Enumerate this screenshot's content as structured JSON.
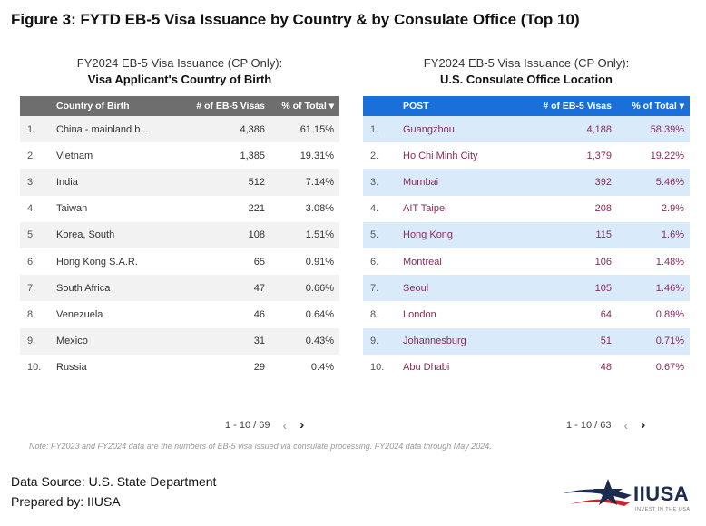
{
  "figure_title": "Figure 3: FYTD EB-5 Visa Issuance by Country & by Consulate Office (Top 10)",
  "left": {
    "subtitle1": "FY2024 EB-5 Visa Issuance (CP Only):",
    "subtitle2": "Visa Applicant's Country of Birth",
    "headers": [
      "",
      "Country of Birth",
      "# of EB-5 Visas",
      "% of Total ▾"
    ],
    "rows": [
      {
        "idx": "1.",
        "name": "China - mainland b...",
        "visas": "4,386",
        "pct": "61.15%"
      },
      {
        "idx": "2.",
        "name": "Vietnam",
        "visas": "1,385",
        "pct": "19.31%"
      },
      {
        "idx": "3.",
        "name": "India",
        "visas": "512",
        "pct": "7.14%"
      },
      {
        "idx": "4.",
        "name": "Taiwan",
        "visas": "221",
        "pct": "3.08%"
      },
      {
        "idx": "5.",
        "name": "Korea, South",
        "visas": "108",
        "pct": "1.51%"
      },
      {
        "idx": "6.",
        "name": "Hong Kong S.A.R.",
        "visas": "65",
        "pct": "0.91%"
      },
      {
        "idx": "7.",
        "name": "South Africa",
        "visas": "47",
        "pct": "0.66%"
      },
      {
        "idx": "8.",
        "name": "Venezuela",
        "visas": "46",
        "pct": "0.64%"
      },
      {
        "idx": "9.",
        "name": "Mexico",
        "visas": "31",
        "pct": "0.43%"
      },
      {
        "idx": "10.",
        "name": "Russia",
        "visas": "29",
        "pct": "0.4%"
      }
    ],
    "pager": {
      "range": "1 - 10 / 69",
      "prev": "‹",
      "next": "›"
    }
  },
  "right": {
    "subtitle1": "FY2024 EB-5 Visa Issuance (CP Only):",
    "subtitle2": "U.S. Consulate Office Location",
    "headers": [
      "",
      "POST",
      "# of EB-5 Visas",
      "% of Total ▾"
    ],
    "rows": [
      {
        "idx": "1.",
        "name": "Guangzhou",
        "visas": "4,188",
        "pct": "58.39%"
      },
      {
        "idx": "2.",
        "name": "Ho Chi Minh City",
        "visas": "1,379",
        "pct": "19.22%"
      },
      {
        "idx": "3.",
        "name": "Mumbai",
        "visas": "392",
        "pct": "5.46%"
      },
      {
        "idx": "4.",
        "name": "AIT Taipei",
        "visas": "208",
        "pct": "2.9%"
      },
      {
        "idx": "5.",
        "name": "Hong Kong",
        "visas": "115",
        "pct": "1.6%"
      },
      {
        "idx": "6.",
        "name": "Montreal",
        "visas": "106",
        "pct": "1.48%"
      },
      {
        "idx": "7.",
        "name": "Seoul",
        "visas": "105",
        "pct": "1.46%"
      },
      {
        "idx": "8.",
        "name": "London",
        "visas": "64",
        "pct": "0.89%"
      },
      {
        "idx": "9.",
        "name": "Johannesburg",
        "visas": "51",
        "pct": "0.71%"
      },
      {
        "idx": "10.",
        "name": "Abu Dhabi",
        "visas": "48",
        "pct": "0.67%"
      }
    ],
    "pager": {
      "range": "1 - 10 / 63",
      "prev": "‹",
      "next": "›"
    }
  },
  "note": "Note: FY2023 and FY2024 data are the numbers of EB-5 visa issued via consulate processing. FY2024 data through May 2024.",
  "footer": {
    "data_source": "Data Source: U.S. State Department",
    "prepared_by": "Prepared by: IIUSA"
  },
  "logo": {
    "text": "IIUSA",
    "tagline": "INVEST IN THE USA",
    "icon": "star-swoosh-logo",
    "colors": {
      "navy": "#1c2b4f",
      "red": "#c8262c"
    }
  },
  "colors": {
    "left_header": "#6e6e6e",
    "right_header": "#1a6fd8",
    "right_band": "#d9ebfb",
    "right_text": "#8a2a5a"
  }
}
